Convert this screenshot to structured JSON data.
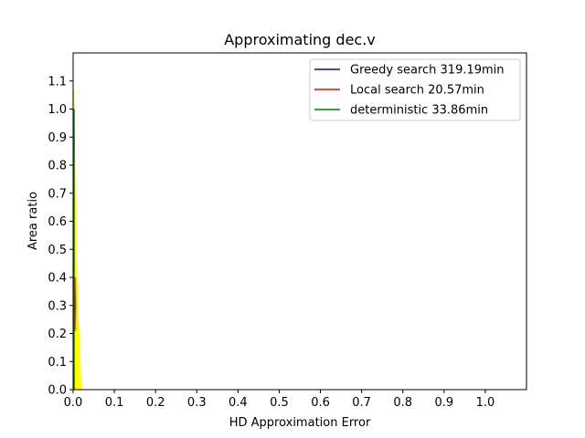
{
  "chart_data": {
    "type": "line",
    "title": "Approximating dec.v",
    "xlabel": "HD Approximation Error",
    "ylabel": "Area ratio",
    "xlim": [
      0.0,
      1.1
    ],
    "ylim": [
      0.0,
      1.2
    ],
    "xticks": [
      "0.0",
      "0.1",
      "0.2",
      "0.3",
      "0.4",
      "0.5",
      "0.6",
      "0.7",
      "0.8",
      "0.9",
      "1.0"
    ],
    "yticks": [
      "0.0",
      "0.1",
      "0.2",
      "0.3",
      "0.4",
      "0.5",
      "0.6",
      "0.7",
      "0.8",
      "0.9",
      "1.0",
      "1.1"
    ],
    "grid": false,
    "legend_position": "top-right",
    "legend": [
      {
        "label": "Greedy search 319.19min",
        "color": "#0000ff"
      },
      {
        "label": "Local search 20.57min",
        "color": "#ff0000"
      },
      {
        "label": "deterministic 33.86min",
        "color": "#008000"
      }
    ],
    "fill_band": {
      "color": "#ffff00",
      "x_low": [
        0.0,
        0.0,
        0.0,
        0.0,
        0.0,
        0.0,
        0.0
      ],
      "x_high": [
        0.02,
        0.018,
        0.012,
        0.008,
        0.006,
        0.004,
        0.003
      ],
      "y": [
        0.0,
        0.1,
        0.3,
        0.5,
        0.7,
        0.9,
        1.07
      ]
    },
    "series": [
      {
        "name": "Greedy search 319.19min",
        "color": "#0000ff",
        "x": [
          0.002,
          0.002
        ],
        "y": [
          0.0,
          1.0
        ]
      },
      {
        "name": "Local search 20.57min",
        "color": "#ff0000",
        "x": [
          0.004,
          0.005,
          0.004
        ],
        "y": [
          0.21,
          0.3,
          0.4
        ]
      },
      {
        "name": "deterministic 33.86min",
        "color": "#008000",
        "x": [
          0.001,
          0.002,
          0.002,
          0.001
        ],
        "y": [
          0.0,
          0.3,
          0.9,
          1.0
        ]
      }
    ]
  }
}
